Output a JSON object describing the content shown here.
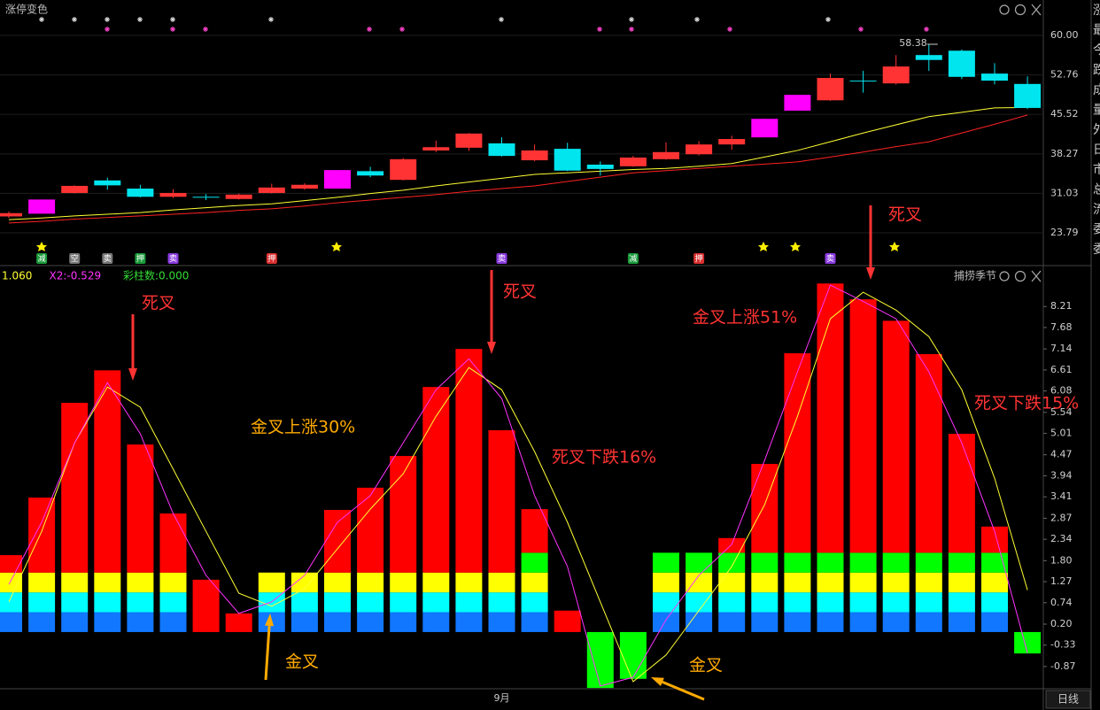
{
  "chart_data": [
    {
      "type": "candlestick",
      "title": "涨停变色",
      "open": [
        26.8,
        27.3,
        31.1,
        33.4,
        31.9,
        30.4,
        30.4,
        30.0,
        31.1,
        31.9,
        31.9,
        35.1,
        33.5,
        38.9,
        39.4,
        40.2,
        37.1,
        39.2,
        36.3,
        36.0,
        37.3,
        38.2,
        40.0,
        41.3,
        46.2,
        48.1,
        51.7,
        51.2,
        56.4,
        57.2,
        53.0,
        51.1
      ],
      "high": [
        27.7,
        29.9,
        32.5,
        33.9,
        32.6,
        31.8,
        30.9,
        31.0,
        32.8,
        32.9,
        35.3,
        35.9,
        37.5,
        40.7,
        42.1,
        41.3,
        40.0,
        40.3,
        36.9,
        37.9,
        40.4,
        40.6,
        41.6,
        44.7,
        49.1,
        53.0,
        53.5,
        56.4,
        58.38,
        57.4,
        54.9,
        52.5
      ],
      "low": [
        26.5,
        27.3,
        31.0,
        31.7,
        30.3,
        30.2,
        29.8,
        29.9,
        31.0,
        31.7,
        31.9,
        34.0,
        33.4,
        38.6,
        38.8,
        37.8,
        36.9,
        35.1,
        34.3,
        35.9,
        37.2,
        38.0,
        39.0,
        41.3,
        46.2,
        48.0,
        49.5,
        51.0,
        53.5,
        52.0,
        51.0,
        46.5
      ],
      "close": [
        27.4,
        29.9,
        32.4,
        32.5,
        30.4,
        31.1,
        30.4,
        30.8,
        32.1,
        32.6,
        35.3,
        34.3,
        37.3,
        39.5,
        42.0,
        37.9,
        38.9,
        35.2,
        35.5,
        37.6,
        38.6,
        40.0,
        41.0,
        44.7,
        49.1,
        52.2,
        51.7,
        54.3,
        55.5,
        52.4,
        51.7,
        46.7
      ],
      "colors": [
        "#ff3333",
        "#ff00ff",
        "#ff3333",
        "#00e5ee",
        "#00e5ee",
        "#ff3333",
        "#00e5ee",
        "#ff3333",
        "#ff3333",
        "#ff3333",
        "#ff00ff",
        "#00e5ee",
        "#ff3333",
        "#ff3333",
        "#ff3333",
        "#00e5ee",
        "#ff3333",
        "#00e5ee",
        "#00e5ee",
        "#ff3333",
        "#ff3333",
        "#ff3333",
        "#ff3333",
        "#ff00ff",
        "#ff00ff",
        "#ff3333",
        "#00e5ee",
        "#ff3333",
        "#00e5ee",
        "#00e5ee",
        "#00e5ee",
        "#00e5ee"
      ],
      "ma_lines": [
        {
          "color": "#ffff33",
          "values": [
            26.2,
            26.5,
            26.9,
            27.2,
            27.5,
            28.0,
            28.4,
            28.8,
            29.1,
            29.7,
            30.3,
            31.0,
            31.6,
            32.4,
            33.1,
            33.8,
            34.5,
            34.8,
            35.1,
            35.4,
            35.6,
            36.0,
            36.5,
            37.7,
            38.9,
            40.5,
            42.1,
            43.6,
            45.1,
            45.9,
            46.7,
            46.8
          ]
        },
        {
          "color": "#ff2222",
          "values": [
            25.6,
            25.9,
            26.3,
            26.6,
            26.9,
            27.2,
            27.5,
            27.9,
            28.2,
            28.7,
            29.3,
            29.8,
            30.3,
            30.8,
            31.4,
            31.9,
            32.4,
            33.2,
            34.0,
            34.8,
            35.2,
            35.6,
            36.0,
            36.4,
            36.8,
            37.7,
            38.6,
            39.6,
            40.5,
            42.1,
            43.7,
            45.4
          ]
        }
      ],
      "badges": [
        null,
        {
          "text": "减",
          "color": "#1a9a3a"
        },
        {
          "text": "空",
          "color": "#777777"
        },
        {
          "text": "卖",
          "color": "#777777"
        },
        {
          "text": "押",
          "color": "#1a9a3a"
        },
        {
          "text": "卖",
          "color": "#8a3adf"
        },
        null,
        null,
        {
          "text": "押",
          "color": "#d93030"
        },
        null,
        null,
        null,
        null,
        null,
        null,
        {
          "text": "卖",
          "color": "#8a3adf"
        },
        null,
        null,
        null,
        {
          "text": "减",
          "color": "#1a9a3a"
        },
        null,
        {
          "text": "押",
          "color": "#d93030"
        },
        null,
        null,
        null,
        {
          "text": "卖",
          "color": "#8a3adf"
        },
        null,
        null,
        null,
        null,
        null,
        null
      ],
      "ylim": [
        17.78,
        63.25
      ],
      "yticks": [
        {
          "value": 60,
          "label": "60.00"
        },
        52.76,
        45.52,
        38.27,
        31.03,
        23.79
      ],
      "grid": true
    },
    {
      "type": "stacked_bar",
      "title": "捕捞季节",
      "legend": [
        {
          "text": "1.060",
          "color": "#ffff33"
        },
        {
          "text": "X2:-0.529",
          "color": "#ff33ff"
        },
        {
          "text": "彩柱数:0.000",
          "color": "#33dd33"
        }
      ],
      "x_labels": [
        null,
        null,
        null,
        null,
        null,
        null,
        null,
        null,
        null,
        null,
        null,
        null,
        null,
        null,
        null,
        "9月",
        null,
        null,
        null,
        null,
        null,
        null,
        null,
        null,
        null,
        null,
        null,
        null,
        null,
        null,
        null,
        null
      ],
      "series": [
        {
          "color": "#1177ff",
          "values": [
            0.5,
            0.5,
            0.5,
            0.5,
            0.5,
            0.5,
            null,
            null,
            0.5,
            0.5,
            0.5,
            0.5,
            0.5,
            0.5,
            0.5,
            0.5,
            0.5,
            null,
            null,
            null,
            0.5,
            0.5,
            0.5,
            0.5,
            0.5,
            0.5,
            0.5,
            0.5,
            0.5,
            0.5,
            0.5,
            null
          ]
        },
        {
          "color": "#00ffff",
          "values": [
            0.5,
            0.5,
            0.5,
            0.5,
            0.5,
            0.5,
            null,
            null,
            0.5,
            0.5,
            0.5,
            0.5,
            0.5,
            0.5,
            0.5,
            0.5,
            0.5,
            null,
            null,
            null,
            0.5,
            0.5,
            0.5,
            0.5,
            0.5,
            0.5,
            0.5,
            0.5,
            0.5,
            0.5,
            0.5,
            null
          ]
        },
        {
          "color": "#ffff00",
          "values": [
            0.5,
            0.5,
            0.5,
            0.5,
            0.5,
            0.5,
            null,
            null,
            0.5,
            0.5,
            0.5,
            0.5,
            0.5,
            0.5,
            0.5,
            0.5,
            0.5,
            null,
            null,
            null,
            0.5,
            0.5,
            0.5,
            0.5,
            0.5,
            0.5,
            0.5,
            0.5,
            0.5,
            0.5,
            0.5,
            null
          ]
        },
        {
          "color": "#00ff00",
          "values": [
            null,
            null,
            null,
            null,
            null,
            null,
            null,
            null,
            null,
            null,
            null,
            null,
            null,
            null,
            null,
            null,
            0.5,
            null,
            -1.41,
            -1.18,
            0.5,
            0.5,
            0.5,
            0.5,
            0.5,
            0.5,
            0.5,
            0.5,
            0.5,
            0.5,
            0.5,
            -0.54
          ]
        },
        {
          "color": "#ff0000",
          "values": [
            0.44,
            1.89,
            4.28,
            5.1,
            3.23,
            1.49,
            1.32,
            0.47,
            null,
            null,
            1.58,
            2.14,
            2.94,
            4.68,
            5.64,
            3.59,
            1.1,
            0.54,
            null,
            null,
            null,
            null,
            0.37,
            2.24,
            5.03,
            6.79,
            6.39,
            5.85,
            5.01,
            3.0,
            0.66,
            null
          ]
        }
      ],
      "lines": [
        {
          "color": "#ffff33",
          "values": [
            0.76,
            2.54,
            4.77,
            6.18,
            5.67,
            4.11,
            2.54,
            0.98,
            0.65,
            1.09,
            2.1,
            3.1,
            3.99,
            5.44,
            6.67,
            6.11,
            4.55,
            2.77,
            0.76,
            -1.25,
            -0.58,
            0.54,
            1.65,
            3.21,
            5.44,
            7.9,
            8.57,
            8.12,
            7.45,
            6.11,
            3.88,
            1.06
          ]
        },
        {
          "color": "#ff33ff",
          "values": [
            1.2,
            2.77,
            4.77,
            6.29,
            5.0,
            2.99,
            1.43,
            0.47,
            0.76,
            1.43,
            2.77,
            3.44,
            4.77,
            6.11,
            6.89,
            5.89,
            3.44,
            1.65,
            -1.36,
            -1.14,
            0.31,
            1.43,
            2.21,
            4.33,
            6.56,
            8.75,
            8.34,
            7.9,
            6.56,
            4.77,
            2.54,
            -0.53
          ]
        }
      ],
      "annotations": [
        {
          "text": "死叉",
          "color": "#ff3333"
        },
        {
          "text": "死叉",
          "color": "#ff3333"
        },
        {
          "text": "死叉",
          "color": "#ff3333"
        },
        {
          "text": "金叉上涨30%",
          "color": "#ffaa00"
        },
        {
          "text": "死叉下跌16%",
          "color": "#ff3333"
        },
        {
          "text": "金叉上涨51%",
          "color": "#ff3333"
        },
        {
          "text": "死叉下跌15%",
          "color": "#ff3333"
        },
        {
          "text": "金叉",
          "color": "#ffaa00"
        },
        {
          "text": "金叉",
          "color": "#ffaa00"
        }
      ],
      "period": "日线",
      "ylim": [
        -1.43,
        8.84
      ],
      "yticks": [
        8.21,
        7.68,
        7.14,
        6.61,
        6.08,
        5.54,
        5.01,
        4.47,
        3.94,
        3.41,
        2.87,
        2.34,
        {
          "value": 1.8,
          "label": "1.80"
        },
        1.27,
        0.74,
        {
          "value": 0.2,
          "label": "0.20"
        },
        -0.33,
        -0.87
      ],
      "grid": false
    }
  ],
  "side_panel": [
    "涨",
    "最",
    "今",
    "跌",
    "成",
    "量",
    "外",
    "日",
    "市",
    "总",
    "流",
    "委",
    "委"
  ]
}
